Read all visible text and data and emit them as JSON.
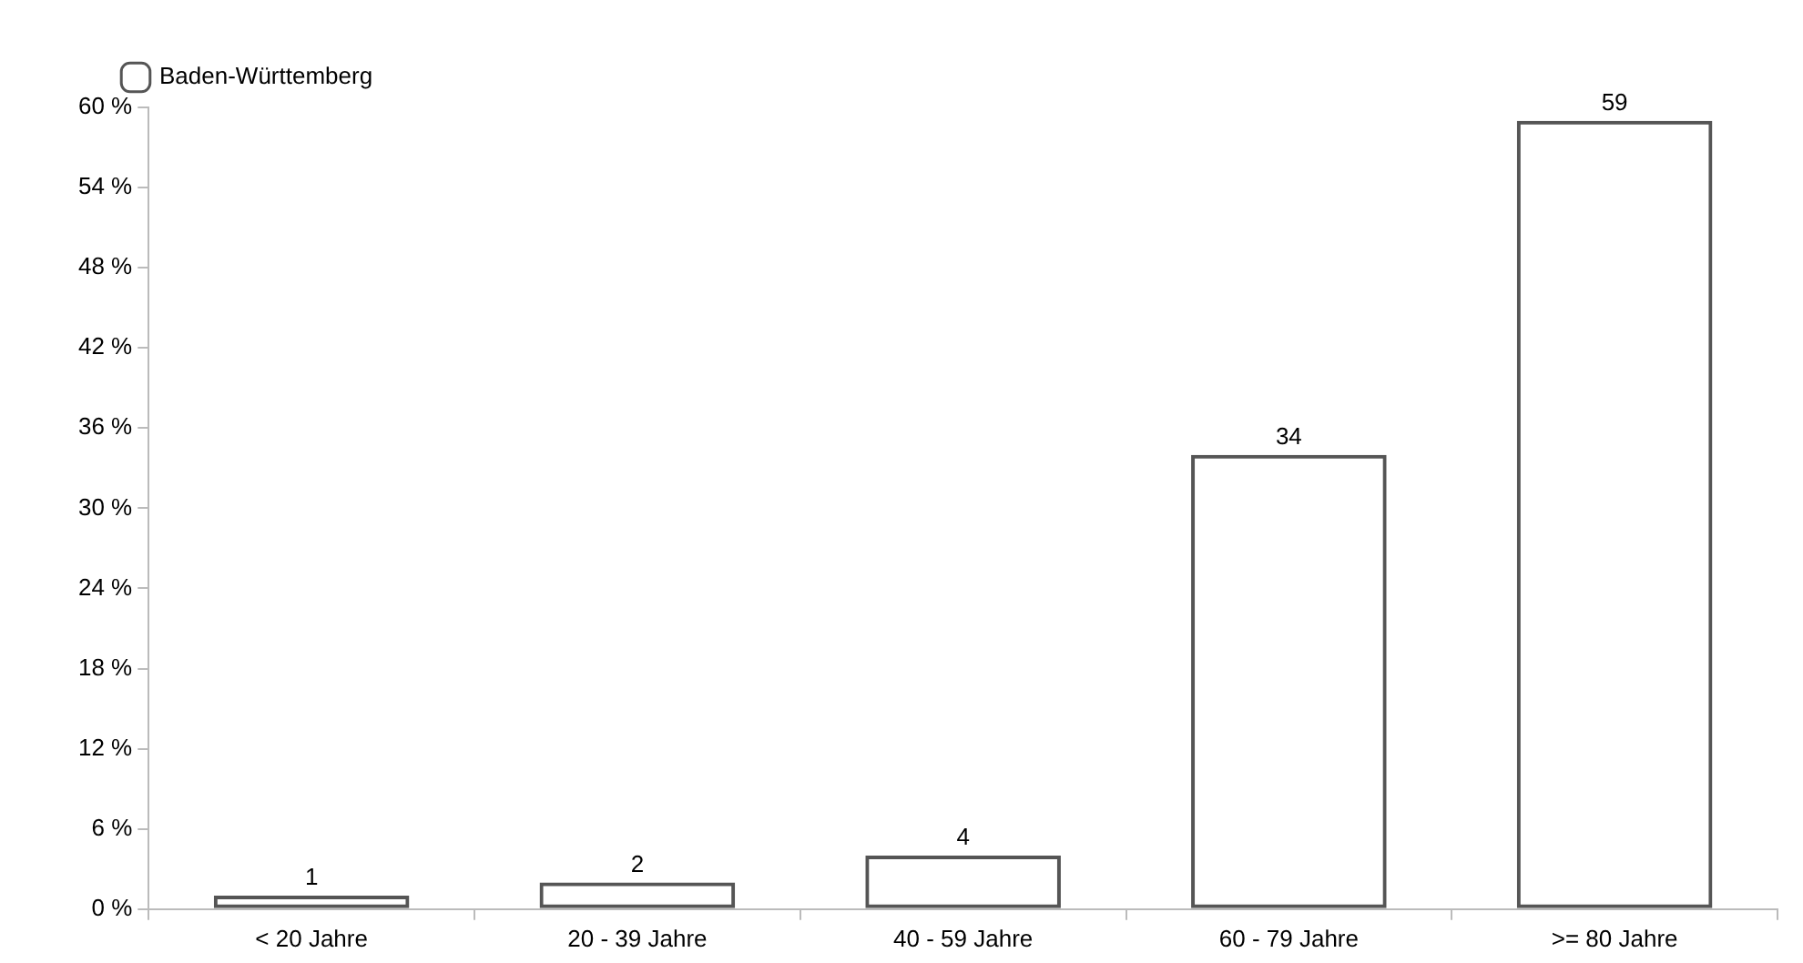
{
  "chart_data": {
    "type": "bar",
    "categories": [
      "< 20 Jahre",
      "20 - 39 Jahre",
      "40 - 59 Jahre",
      "60 - 79 Jahre",
      ">= 80 Jahre"
    ],
    "series": [
      {
        "name": "Baden-Württemberg",
        "color": "#555555",
        "values": [
          1,
          2,
          4,
          34,
          59
        ]
      }
    ],
    "ylim": [
      0,
      60
    ],
    "yticks": [
      {
        "value": 0,
        "label": "0 %"
      },
      {
        "value": 6,
        "label": "6 %"
      },
      {
        "value": 12,
        "label": "12 %"
      },
      {
        "value": 18,
        "label": "18 %"
      },
      {
        "value": 24,
        "label": "24 %"
      },
      {
        "value": 30,
        "label": "30 %"
      },
      {
        "value": 36,
        "label": "36 %"
      },
      {
        "value": 42,
        "label": "42 %"
      },
      {
        "value": 48,
        "label": "48 %"
      },
      {
        "value": 54,
        "label": "54 %"
      },
      {
        "value": 60,
        "label": "60 %"
      }
    ],
    "grid": false,
    "legend": "top left",
    "data_labels": true
  }
}
